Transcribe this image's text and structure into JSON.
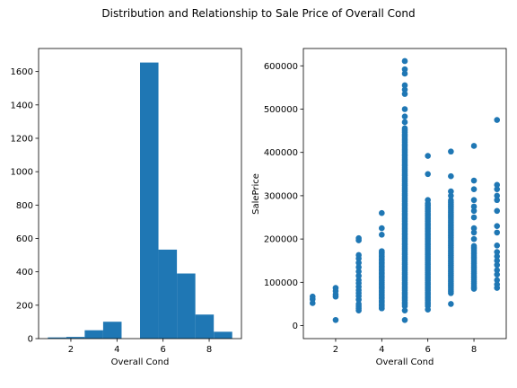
{
  "figure": {
    "title": "Distribution and Relationship to Sale Price of Overall Cond"
  },
  "colors": {
    "mark": "#1f77b4",
    "axis": "#000000"
  },
  "chart_data": [
    {
      "type": "bar",
      "subtype": "histogram",
      "title": "",
      "xlabel": "Overall Cond",
      "ylabel": "",
      "xlim": [
        0.6,
        9.4
      ],
      "ylim": [
        0,
        1738
      ],
      "xticks": [
        2,
        4,
        6,
        8
      ],
      "yticks": [
        0,
        200,
        400,
        600,
        800,
        1000,
        1200,
        1400,
        1600
      ],
      "bins": [
        {
          "x0": 1.0,
          "x1": 1.8,
          "count": 7
        },
        {
          "x0": 1.8,
          "x1": 2.6,
          "count": 10
        },
        {
          "x0": 2.6,
          "x1": 3.4,
          "count": 50
        },
        {
          "x0": 3.4,
          "x1": 4.2,
          "count": 101
        },
        {
          "x0": 4.2,
          "x1": 5.0,
          "count": 0
        },
        {
          "x0": 5.0,
          "x1": 5.8,
          "count": 1654
        },
        {
          "x0": 5.8,
          "x1": 6.6,
          "count": 533
        },
        {
          "x0": 6.6,
          "x1": 7.4,
          "count": 390
        },
        {
          "x0": 7.4,
          "x1": 8.2,
          "count": 144
        },
        {
          "x0": 8.2,
          "x1": 9.0,
          "count": 41
        }
      ],
      "grid": false
    },
    {
      "type": "scatter",
      "title": "",
      "xlabel": "Overall Cond",
      "ylabel": "SalePrice",
      "xlim": [
        0.6,
        9.4
      ],
      "ylim": [
        -30000,
        640000
      ],
      "xticks": [
        2,
        4,
        6,
        8
      ],
      "yticks": [
        0,
        100000,
        200000,
        300000,
        400000,
        500000,
        600000
      ],
      "points": [
        {
          "x": 1,
          "y": 52000
        },
        {
          "x": 1,
          "y": 61000
        },
        {
          "x": 1,
          "y": 67000
        },
        {
          "x": 2,
          "y": 13000
        },
        {
          "x": 2,
          "y": 67000
        },
        {
          "x": 2,
          "y": 72000
        },
        {
          "x": 2,
          "y": 80000
        },
        {
          "x": 2,
          "y": 87000
        },
        {
          "x": 3,
          "y": 35000
        },
        {
          "x": 3,
          "y": 40000
        },
        {
          "x": 3,
          "y": 45000
        },
        {
          "x": 3,
          "y": 50000
        },
        {
          "x": 3,
          "y": 60000
        },
        {
          "x": 3,
          "y": 68000
        },
        {
          "x": 3,
          "y": 75000
        },
        {
          "x": 3,
          "y": 82000
        },
        {
          "x": 3,
          "y": 90000
        },
        {
          "x": 3,
          "y": 98000
        },
        {
          "x": 3,
          "y": 105000
        },
        {
          "x": 3,
          "y": 115000
        },
        {
          "x": 3,
          "y": 125000
        },
        {
          "x": 3,
          "y": 135000
        },
        {
          "x": 3,
          "y": 145000
        },
        {
          "x": 3,
          "y": 155000
        },
        {
          "x": 3,
          "y": 163000
        },
        {
          "x": 3,
          "y": 197000
        },
        {
          "x": 3,
          "y": 202000
        },
        {
          "x": 4,
          "y": 40000
        },
        {
          "x": 4,
          "y": 48000
        },
        {
          "x": 4,
          "y": 56000
        },
        {
          "x": 4,
          "y": 64000
        },
        {
          "x": 4,
          "y": 72000
        },
        {
          "x": 4,
          "y": 80000
        },
        {
          "x": 4,
          "y": 88000
        },
        {
          "x": 4,
          "y": 96000
        },
        {
          "x": 4,
          "y": 104000
        },
        {
          "x": 4,
          "y": 112000
        },
        {
          "x": 4,
          "y": 120000
        },
        {
          "x": 4,
          "y": 128000
        },
        {
          "x": 4,
          "y": 136000
        },
        {
          "x": 4,
          "y": 144000
        },
        {
          "x": 4,
          "y": 152000
        },
        {
          "x": 4,
          "y": 160000
        },
        {
          "x": 4,
          "y": 168000
        },
        {
          "x": 4,
          "y": 172000
        },
        {
          "x": 4,
          "y": 210000
        },
        {
          "x": 4,
          "y": 225000
        },
        {
          "x": 4,
          "y": 260000
        },
        {
          "x": 5,
          "y": 13000
        },
        {
          "x": 5,
          "y": 35000
        },
        {
          "x": 5,
          "y": 470000
        },
        {
          "x": 5,
          "y": 483000
        },
        {
          "x": 5,
          "y": 500000
        },
        {
          "x": 5,
          "y": 535000
        },
        {
          "x": 5,
          "y": 545000
        },
        {
          "x": 5,
          "y": 555000
        },
        {
          "x": 5,
          "y": 582000
        },
        {
          "x": 5,
          "y": 592000
        },
        {
          "x": 5,
          "y": 611000
        },
        {
          "x": 6,
          "y": 37000
        },
        {
          "x": 6,
          "y": 290000
        },
        {
          "x": 6,
          "y": 350000
        },
        {
          "x": 6,
          "y": 392000
        },
        {
          "x": 7,
          "y": 50000
        },
        {
          "x": 7,
          "y": 300000
        },
        {
          "x": 7,
          "y": 310000
        },
        {
          "x": 7,
          "y": 345000
        },
        {
          "x": 7,
          "y": 402000
        },
        {
          "x": 8,
          "y": 85000
        },
        {
          "x": 8,
          "y": 200000
        },
        {
          "x": 8,
          "y": 215000
        },
        {
          "x": 8,
          "y": 225000
        },
        {
          "x": 8,
          "y": 250000
        },
        {
          "x": 8,
          "y": 265000
        },
        {
          "x": 8,
          "y": 275000
        },
        {
          "x": 8,
          "y": 290000
        },
        {
          "x": 8,
          "y": 315000
        },
        {
          "x": 8,
          "y": 335000
        },
        {
          "x": 8,
          "y": 415000
        },
        {
          "x": 9,
          "y": 87000
        },
        {
          "x": 9,
          "y": 95000
        },
        {
          "x": 9,
          "y": 105000
        },
        {
          "x": 9,
          "y": 118000
        },
        {
          "x": 9,
          "y": 128000
        },
        {
          "x": 9,
          "y": 140000
        },
        {
          "x": 9,
          "y": 150000
        },
        {
          "x": 9,
          "y": 160000
        },
        {
          "x": 9,
          "y": 170000
        },
        {
          "x": 9,
          "y": 185000
        },
        {
          "x": 9,
          "y": 215000
        },
        {
          "x": 9,
          "y": 230000
        },
        {
          "x": 9,
          "y": 265000
        },
        {
          "x": 9,
          "y": 290000
        },
        {
          "x": 9,
          "y": 300000
        },
        {
          "x": 9,
          "y": 315000
        },
        {
          "x": 9,
          "y": 325000
        },
        {
          "x": 9,
          "y": 475000
        }
      ],
      "dense_ranges": [
        {
          "x": 4,
          "y_min": 40000,
          "y_max": 170000
        },
        {
          "x": 5,
          "y_min": 45000,
          "y_max": 460000
        },
        {
          "x": 6,
          "y_min": 45000,
          "y_max": 285000
        },
        {
          "x": 7,
          "y_min": 75000,
          "y_max": 290000
        },
        {
          "x": 8,
          "y_min": 88000,
          "y_max": 185000
        }
      ],
      "grid": false
    }
  ]
}
